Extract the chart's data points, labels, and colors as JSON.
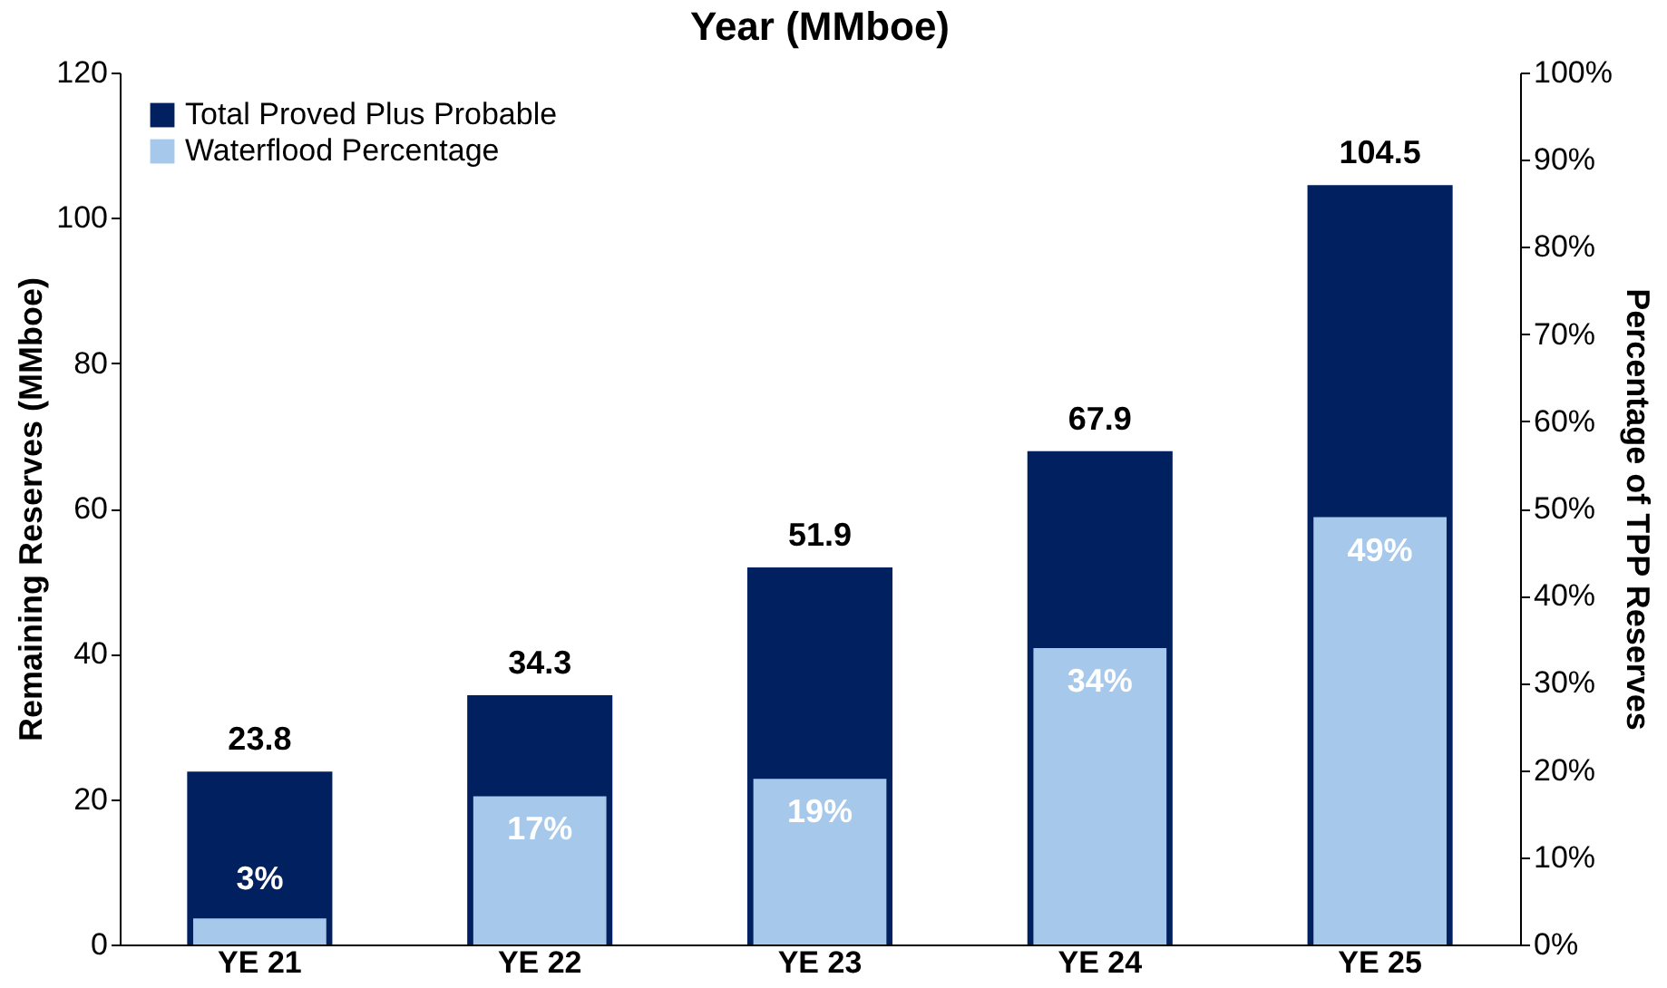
{
  "chart_data": {
    "type": "bar",
    "title": "Year (MMboe)",
    "categories": [
      "YE 21",
      "YE 22",
      "YE 23",
      "YE 24",
      "YE 25"
    ],
    "ylabel": "Remaining Reserves (MMboe)",
    "y2label": "Percentage of TPP Reserves",
    "series": [
      {
        "name": "Total Proved Plus Probable",
        "color": "#002060",
        "values": [
          23.8,
          34.3,
          51.9,
          67.9,
          104.5
        ],
        "value_labels": [
          "23.8",
          "34.3",
          "51.9",
          "67.9",
          "104.5"
        ]
      },
      {
        "name": "Waterflood Percentage",
        "color": "#a6c8ea",
        "axis": "y2",
        "values": [
          3,
          17,
          19,
          34,
          49
        ],
        "value_labels": [
          "3%",
          "17%",
          "19%",
          "34%",
          "49%"
        ]
      }
    ],
    "ylim": [
      0,
      120
    ],
    "yticks": [
      0,
      20,
      40,
      60,
      80,
      100,
      120
    ],
    "y2lim": [
      0,
      100
    ],
    "y2ticks": [
      {
        "value": 0,
        "label": "0%"
      },
      {
        "value": 10,
        "label": "10%"
      },
      {
        "value": 20,
        "label": "20%"
      },
      {
        "value": 30,
        "label": "30%"
      },
      {
        "value": 40,
        "label": "40%"
      },
      {
        "value": 50,
        "label": "50%"
      },
      {
        "value": 60,
        "label": "60%"
      },
      {
        "value": 70,
        "label": "70%"
      },
      {
        "value": 80,
        "label": "80%"
      },
      {
        "value": 90,
        "label": "90%"
      },
      {
        "value": 100,
        "label": "100%"
      }
    ],
    "legend": "top left"
  }
}
